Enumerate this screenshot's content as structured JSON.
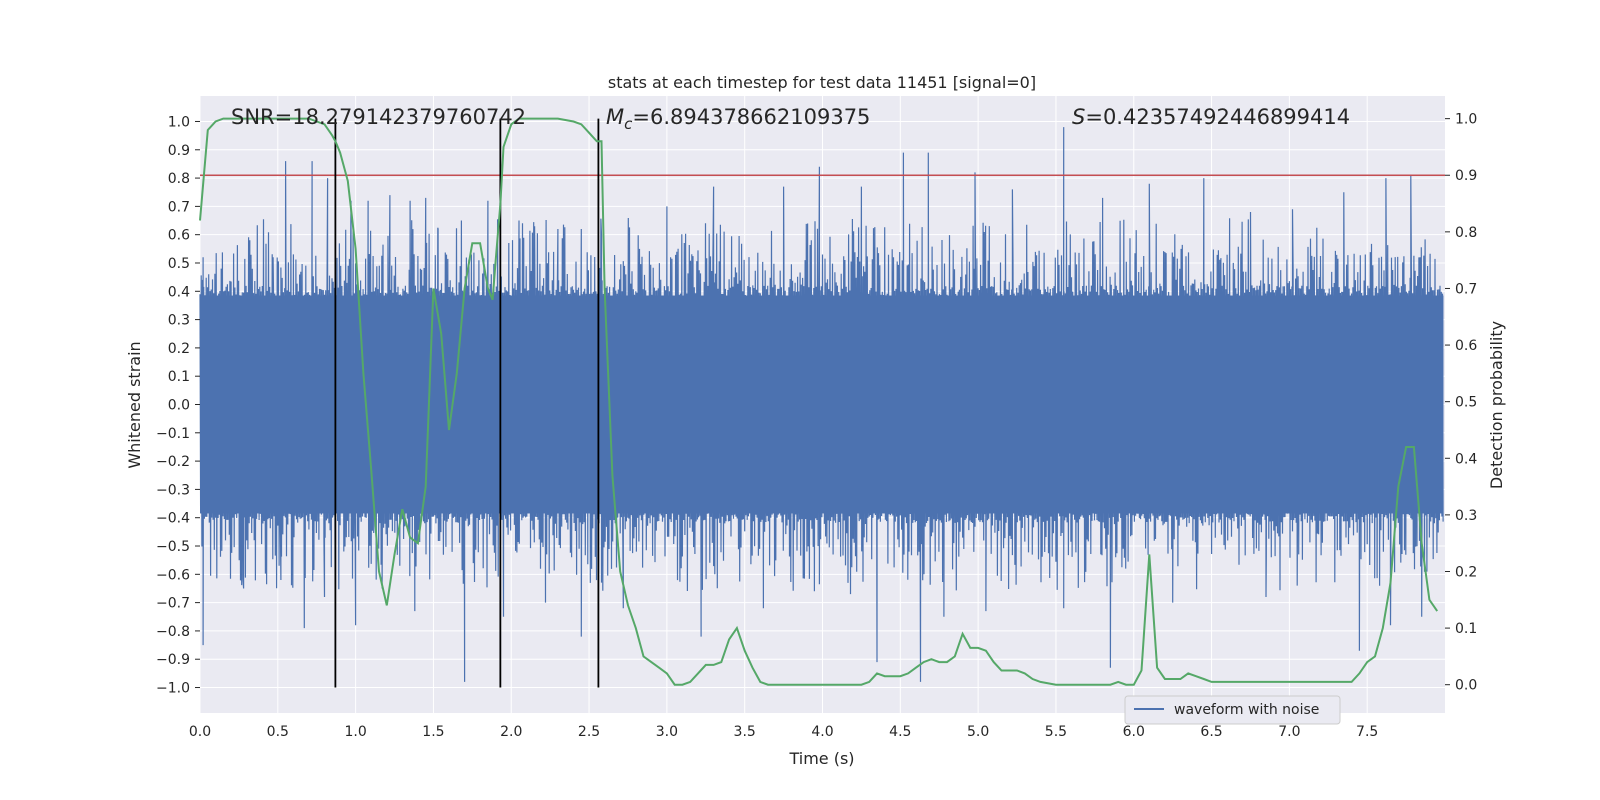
{
  "chart_data": {
    "type": "line",
    "title": "stats at each timestep for test data 11451 [signal=0]",
    "xlabel": "Time (s)",
    "ylabel": "Whitened strain",
    "y2label": "Detection probability",
    "xlim": [
      0.0,
      8.0
    ],
    "ylim": [
      -1.09,
      1.09
    ],
    "y2lim": [
      -0.05,
      1.04
    ],
    "x_ticks": [
      "0.0",
      "0.5",
      "1.0",
      "1.5",
      "2.0",
      "2.5",
      "3.0",
      "3.5",
      "4.0",
      "4.5",
      "5.0",
      "5.5",
      "6.0",
      "6.5",
      "7.0",
      "7.5"
    ],
    "y_ticks": [
      "1.0",
      "0.9",
      "0.8",
      "0.7",
      "0.6",
      "0.5",
      "0.4",
      "0.3",
      "0.2",
      "0.1",
      "0.0",
      "−0.1",
      "−0.2",
      "−0.3",
      "−0.4",
      "−0.5",
      "−0.6",
      "−0.7",
      "−0.8",
      "−0.9",
      "−1.0"
    ],
    "y2_ticks": [
      "1.0",
      "0.9",
      "0.8",
      "0.7",
      "0.6",
      "0.5",
      "0.4",
      "0.3",
      "0.2",
      "0.1",
      "0.0"
    ],
    "grid": true,
    "legend": {
      "position": "bottom-right",
      "entries": [
        "waveform with noise"
      ]
    },
    "annotations": {
      "snr_label": "SNR=18.279142379760742",
      "mc_label_symbol": "M",
      "mc_label_sub": "c",
      "mc_label_value": "=6.894378662109375",
      "s_label_symbol": "S",
      "s_label_value": "=0.42357492446899414"
    },
    "threshold_line": {
      "axis": "right",
      "value": 0.9,
      "color": "#c44e52"
    },
    "vertical_markers": [
      0.87,
      1.93,
      2.56
    ],
    "colors": {
      "waveform": "#4c72b0",
      "probability": "#55a868",
      "threshold": "#c44e52",
      "markers": "#000000",
      "plot_bg": "#eaeaf2",
      "grid": "#ffffff"
    },
    "waveform": {
      "name": "waveform with noise",
      "duration_s": 7.99,
      "note_visible": "dense noise, bulk within about ±0.4",
      "peaks_x": [
        0.02,
        0.32,
        0.47,
        0.55,
        0.72,
        0.82,
        0.97,
        1.08,
        1.22,
        1.35,
        1.45,
        1.53,
        1.68,
        1.85,
        2.05,
        2.15,
        2.3,
        2.45,
        2.58,
        3.0,
        3.3,
        3.75,
        3.98,
        4.25,
        4.52,
        4.68,
        4.98,
        5.22,
        5.55,
        5.8,
        6.1,
        6.45,
        6.75,
        7.02,
        7.35,
        7.62,
        7.78
      ],
      "peaks_y": [
        0.52,
        0.58,
        0.52,
        0.86,
        0.86,
        0.8,
        0.72,
        0.72,
        0.74,
        0.72,
        0.73,
        0.62,
        0.65,
        0.72,
        0.65,
        0.63,
        0.62,
        0.62,
        0.6,
        0.7,
        0.77,
        0.77,
        0.84,
        0.77,
        0.89,
        0.89,
        0.82,
        0.76,
        0.98,
        0.73,
        0.78,
        0.8,
        0.68,
        0.69,
        0.75,
        0.8,
        0.81
      ],
      "troughs_x": [
        0.02,
        0.28,
        0.52,
        0.67,
        0.8,
        1.0,
        1.17,
        1.38,
        1.7,
        1.95,
        2.22,
        2.45,
        2.72,
        3.22,
        3.62,
        4.18,
        4.35,
        4.63,
        4.78,
        5.05,
        5.55,
        5.85,
        6.25,
        6.85,
        7.05,
        7.45,
        7.65,
        7.85
      ],
      "troughs_y": [
        -0.85,
        -0.65,
        -0.62,
        -0.79,
        -0.68,
        -0.78,
        -0.65,
        -0.73,
        -0.98,
        -0.75,
        -0.7,
        -0.82,
        -0.72,
        -0.82,
        -0.72,
        -0.67,
        -0.91,
        -0.98,
        -0.75,
        -0.73,
        -0.72,
        -0.93,
        -0.7,
        -0.68,
        -0.64,
        -0.87,
        -0.78,
        -0.75
      ]
    },
    "probability": {
      "name": "detection probability",
      "x": [
        0.0,
        0.05,
        0.1,
        0.15,
        0.2,
        0.3,
        0.4,
        0.5,
        0.6,
        0.7,
        0.75,
        0.8,
        0.85,
        0.87,
        0.9,
        0.95,
        1.0,
        1.05,
        1.1,
        1.15,
        1.2,
        1.25,
        1.3,
        1.35,
        1.4,
        1.45,
        1.5,
        1.55,
        1.6,
        1.65,
        1.7,
        1.75,
        1.8,
        1.85,
        1.88,
        1.9,
        1.93,
        1.95,
        2.0,
        2.05,
        2.1,
        2.2,
        2.3,
        2.4,
        2.45,
        2.5,
        2.55,
        2.58,
        2.6,
        2.65,
        2.7,
        2.75,
        2.8,
        2.85,
        2.9,
        2.95,
        3.0,
        3.05,
        3.1,
        3.15,
        3.2,
        3.25,
        3.3,
        3.35,
        3.4,
        3.45,
        3.5,
        3.55,
        3.6,
        3.65,
        3.7,
        3.75,
        3.8,
        3.9,
        4.0,
        4.1,
        4.2,
        4.25,
        4.3,
        4.35,
        4.4,
        4.45,
        4.5,
        4.55,
        4.6,
        4.65,
        4.7,
        4.75,
        4.8,
        4.85,
        4.9,
        4.95,
        5.0,
        5.05,
        5.1,
        5.15,
        5.2,
        5.25,
        5.3,
        5.35,
        5.4,
        5.5,
        5.6,
        5.7,
        5.8,
        5.85,
        5.9,
        5.95,
        6.0,
        6.05,
        6.1,
        6.15,
        6.2,
        6.25,
        6.3,
        6.35,
        6.4,
        6.45,
        6.5,
        6.6,
        6.7,
        6.8,
        6.9,
        6.95,
        7.0,
        7.1,
        7.2,
        7.3,
        7.4,
        7.45,
        7.5,
        7.55,
        7.6,
        7.65,
        7.7,
        7.75,
        7.8,
        7.85,
        7.9,
        7.95
      ],
      "y": [
        0.82,
        0.98,
        0.995,
        1.0,
        1.0,
        1.0,
        1.0,
        1.0,
        1.0,
        1.0,
        0.995,
        0.99,
        0.97,
        0.96,
        0.94,
        0.89,
        0.77,
        0.55,
        0.38,
        0.2,
        0.14,
        0.23,
        0.31,
        0.26,
        0.25,
        0.35,
        0.7,
        0.62,
        0.45,
        0.55,
        0.7,
        0.78,
        0.78,
        0.7,
        0.68,
        0.75,
        0.85,
        0.95,
        0.99,
        1.0,
        1.0,
        1.0,
        1.0,
        0.995,
        0.99,
        0.975,
        0.96,
        0.96,
        0.7,
        0.37,
        0.2,
        0.14,
        0.1,
        0.05,
        0.04,
        0.03,
        0.02,
        0.0,
        0.0,
        0.005,
        0.02,
        0.035,
        0.035,
        0.04,
        0.08,
        0.1,
        0.06,
        0.03,
        0.005,
        0.0,
        0.0,
        0.0,
        0.0,
        0.0,
        0.0,
        0.0,
        0.0,
        0.0,
        0.005,
        0.02,
        0.015,
        0.015,
        0.015,
        0.02,
        0.03,
        0.04,
        0.045,
        0.04,
        0.04,
        0.05,
        0.09,
        0.065,
        0.065,
        0.06,
        0.04,
        0.025,
        0.025,
        0.025,
        0.02,
        0.01,
        0.005,
        0.0,
        0.0,
        0.0,
        0.0,
        0.0,
        0.005,
        0.0,
        0.0,
        0.025,
        0.23,
        0.03,
        0.01,
        0.01,
        0.01,
        0.02,
        0.015,
        0.01,
        0.005,
        0.005,
        0.005,
        0.005,
        0.005,
        0.005,
        0.005,
        0.005,
        0.005,
        0.005,
        0.005,
        0.02,
        0.04,
        0.05,
        0.1,
        0.18,
        0.35,
        0.42,
        0.42,
        0.25,
        0.15,
        0.13
      ]
    }
  }
}
